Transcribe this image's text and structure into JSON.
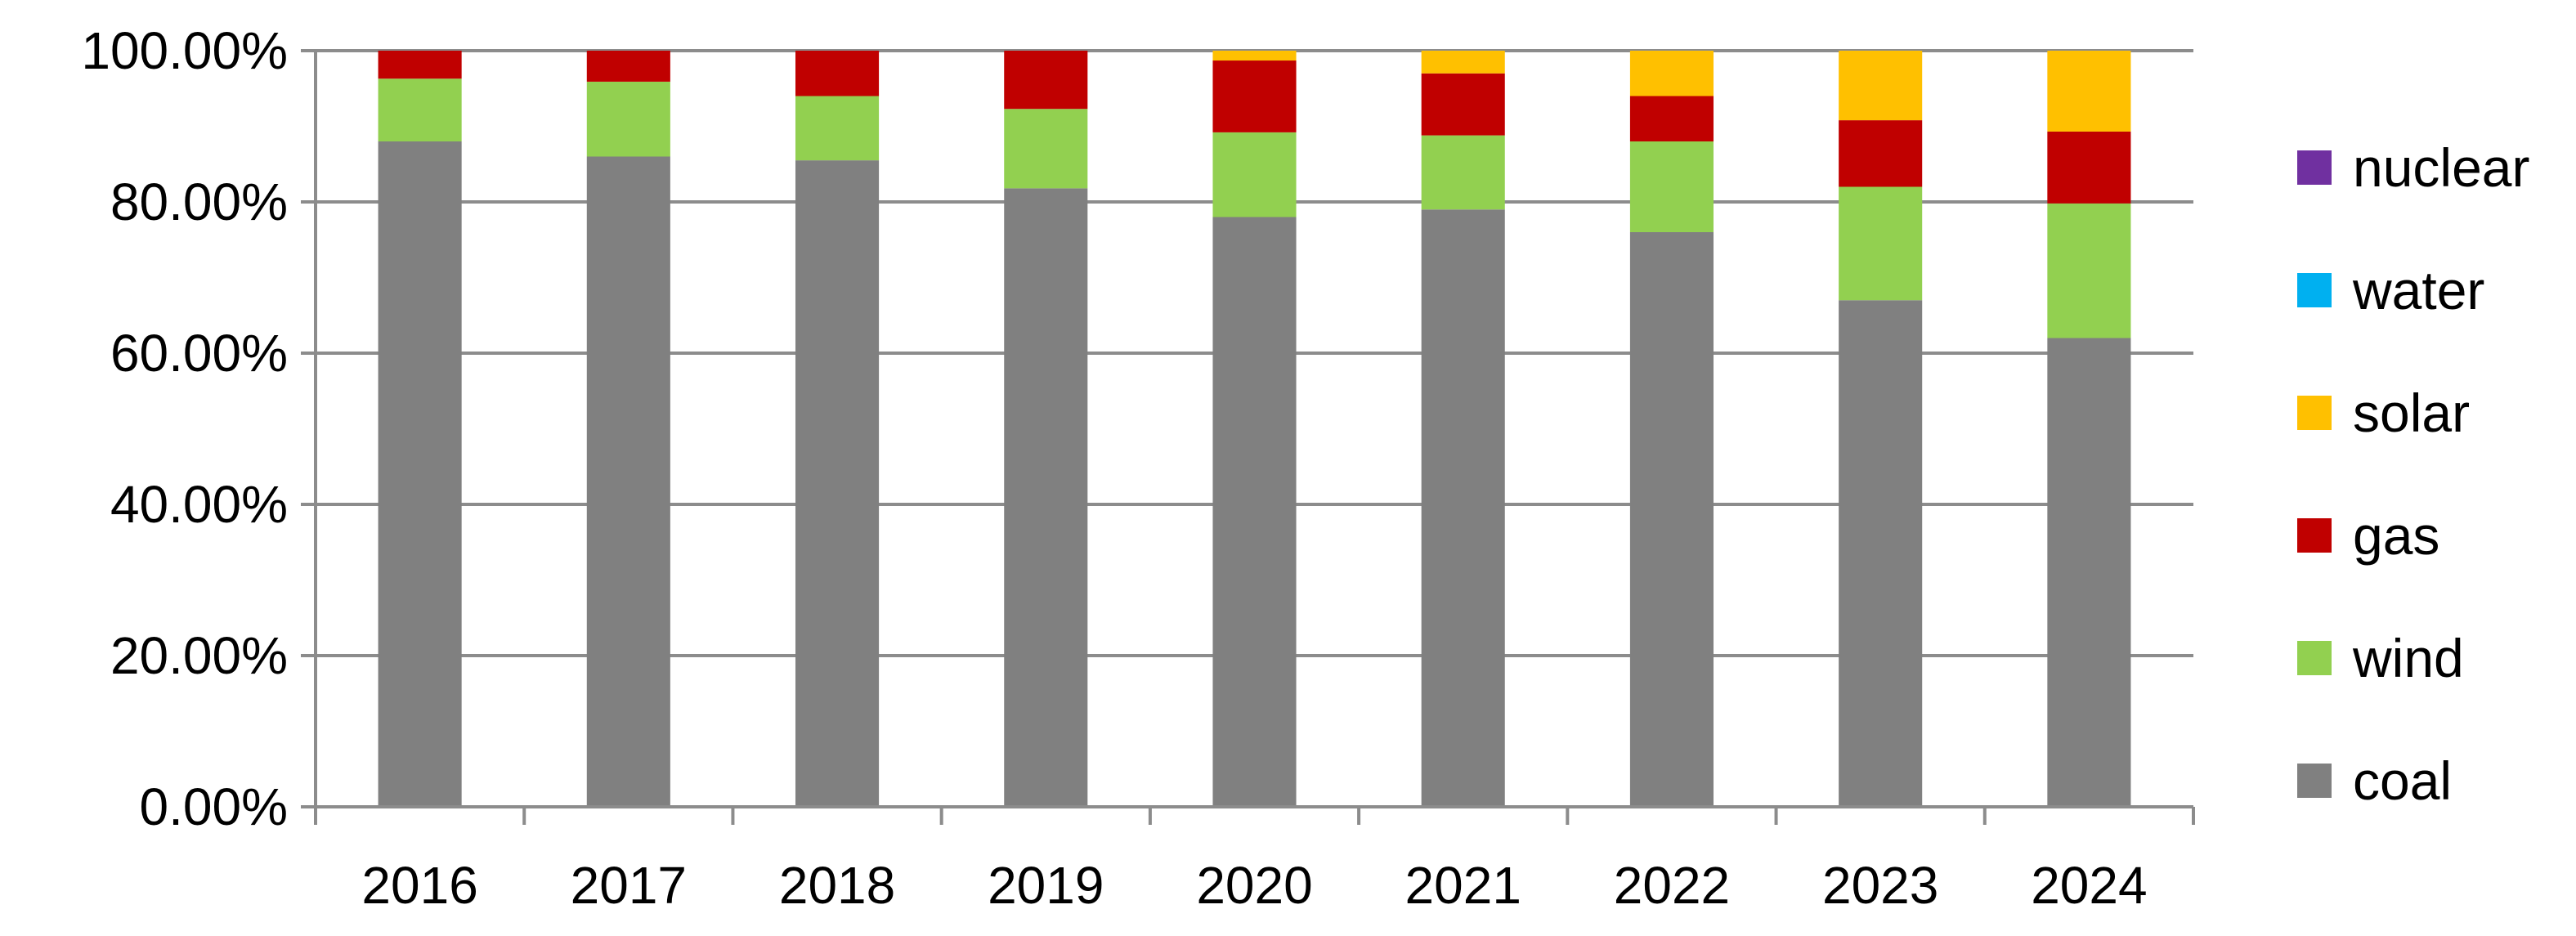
{
  "chart_data": {
    "type": "bar",
    "stacked": true,
    "normalized_percent": true,
    "categories": [
      "2016",
      "2017",
      "2018",
      "2019",
      "2020",
      "2021",
      "2022",
      "2023",
      "2024"
    ],
    "series": [
      {
        "name": "coal",
        "color": "#808080",
        "values": [
          88.0,
          86.0,
          85.5,
          81.8,
          78.0,
          79.0,
          76.0,
          67.0,
          62.0
        ]
      },
      {
        "name": "wind",
        "color": "#92D050",
        "values": [
          8.3,
          9.9,
          8.5,
          10.5,
          11.2,
          9.8,
          12.0,
          15.0,
          17.8
        ]
      },
      {
        "name": "gas",
        "color": "#C00000",
        "values": [
          3.7,
          4.1,
          6.0,
          7.7,
          9.5,
          8.2,
          6.0,
          8.8,
          9.5
        ]
      },
      {
        "name": "solar",
        "color": "#FFC000",
        "values": [
          0.0,
          0.0,
          0.0,
          0.0,
          1.3,
          3.0,
          6.0,
          9.2,
          10.7
        ]
      },
      {
        "name": "water",
        "color": "#00B0F0",
        "values": [
          0.0,
          0.0,
          0.0,
          0.0,
          0.0,
          0.0,
          0.0,
          0.0,
          0.0
        ]
      },
      {
        "name": "nuclear",
        "color": "#7030A0",
        "values": [
          0.0,
          0.0,
          0.0,
          0.0,
          0.0,
          0.0,
          0.0,
          0.0,
          0.0
        ]
      }
    ],
    "y_ticks": [
      "0.00%",
      "20.00%",
      "40.00%",
      "60.00%",
      "80.00%",
      "100.00%"
    ],
    "ylim": [
      0,
      100
    ],
    "grid": true,
    "legend_position": "right",
    "legend_order": [
      "nuclear",
      "water",
      "solar",
      "gas",
      "wind",
      "coal"
    ],
    "title": "",
    "xlabel": "",
    "ylabel": ""
  }
}
